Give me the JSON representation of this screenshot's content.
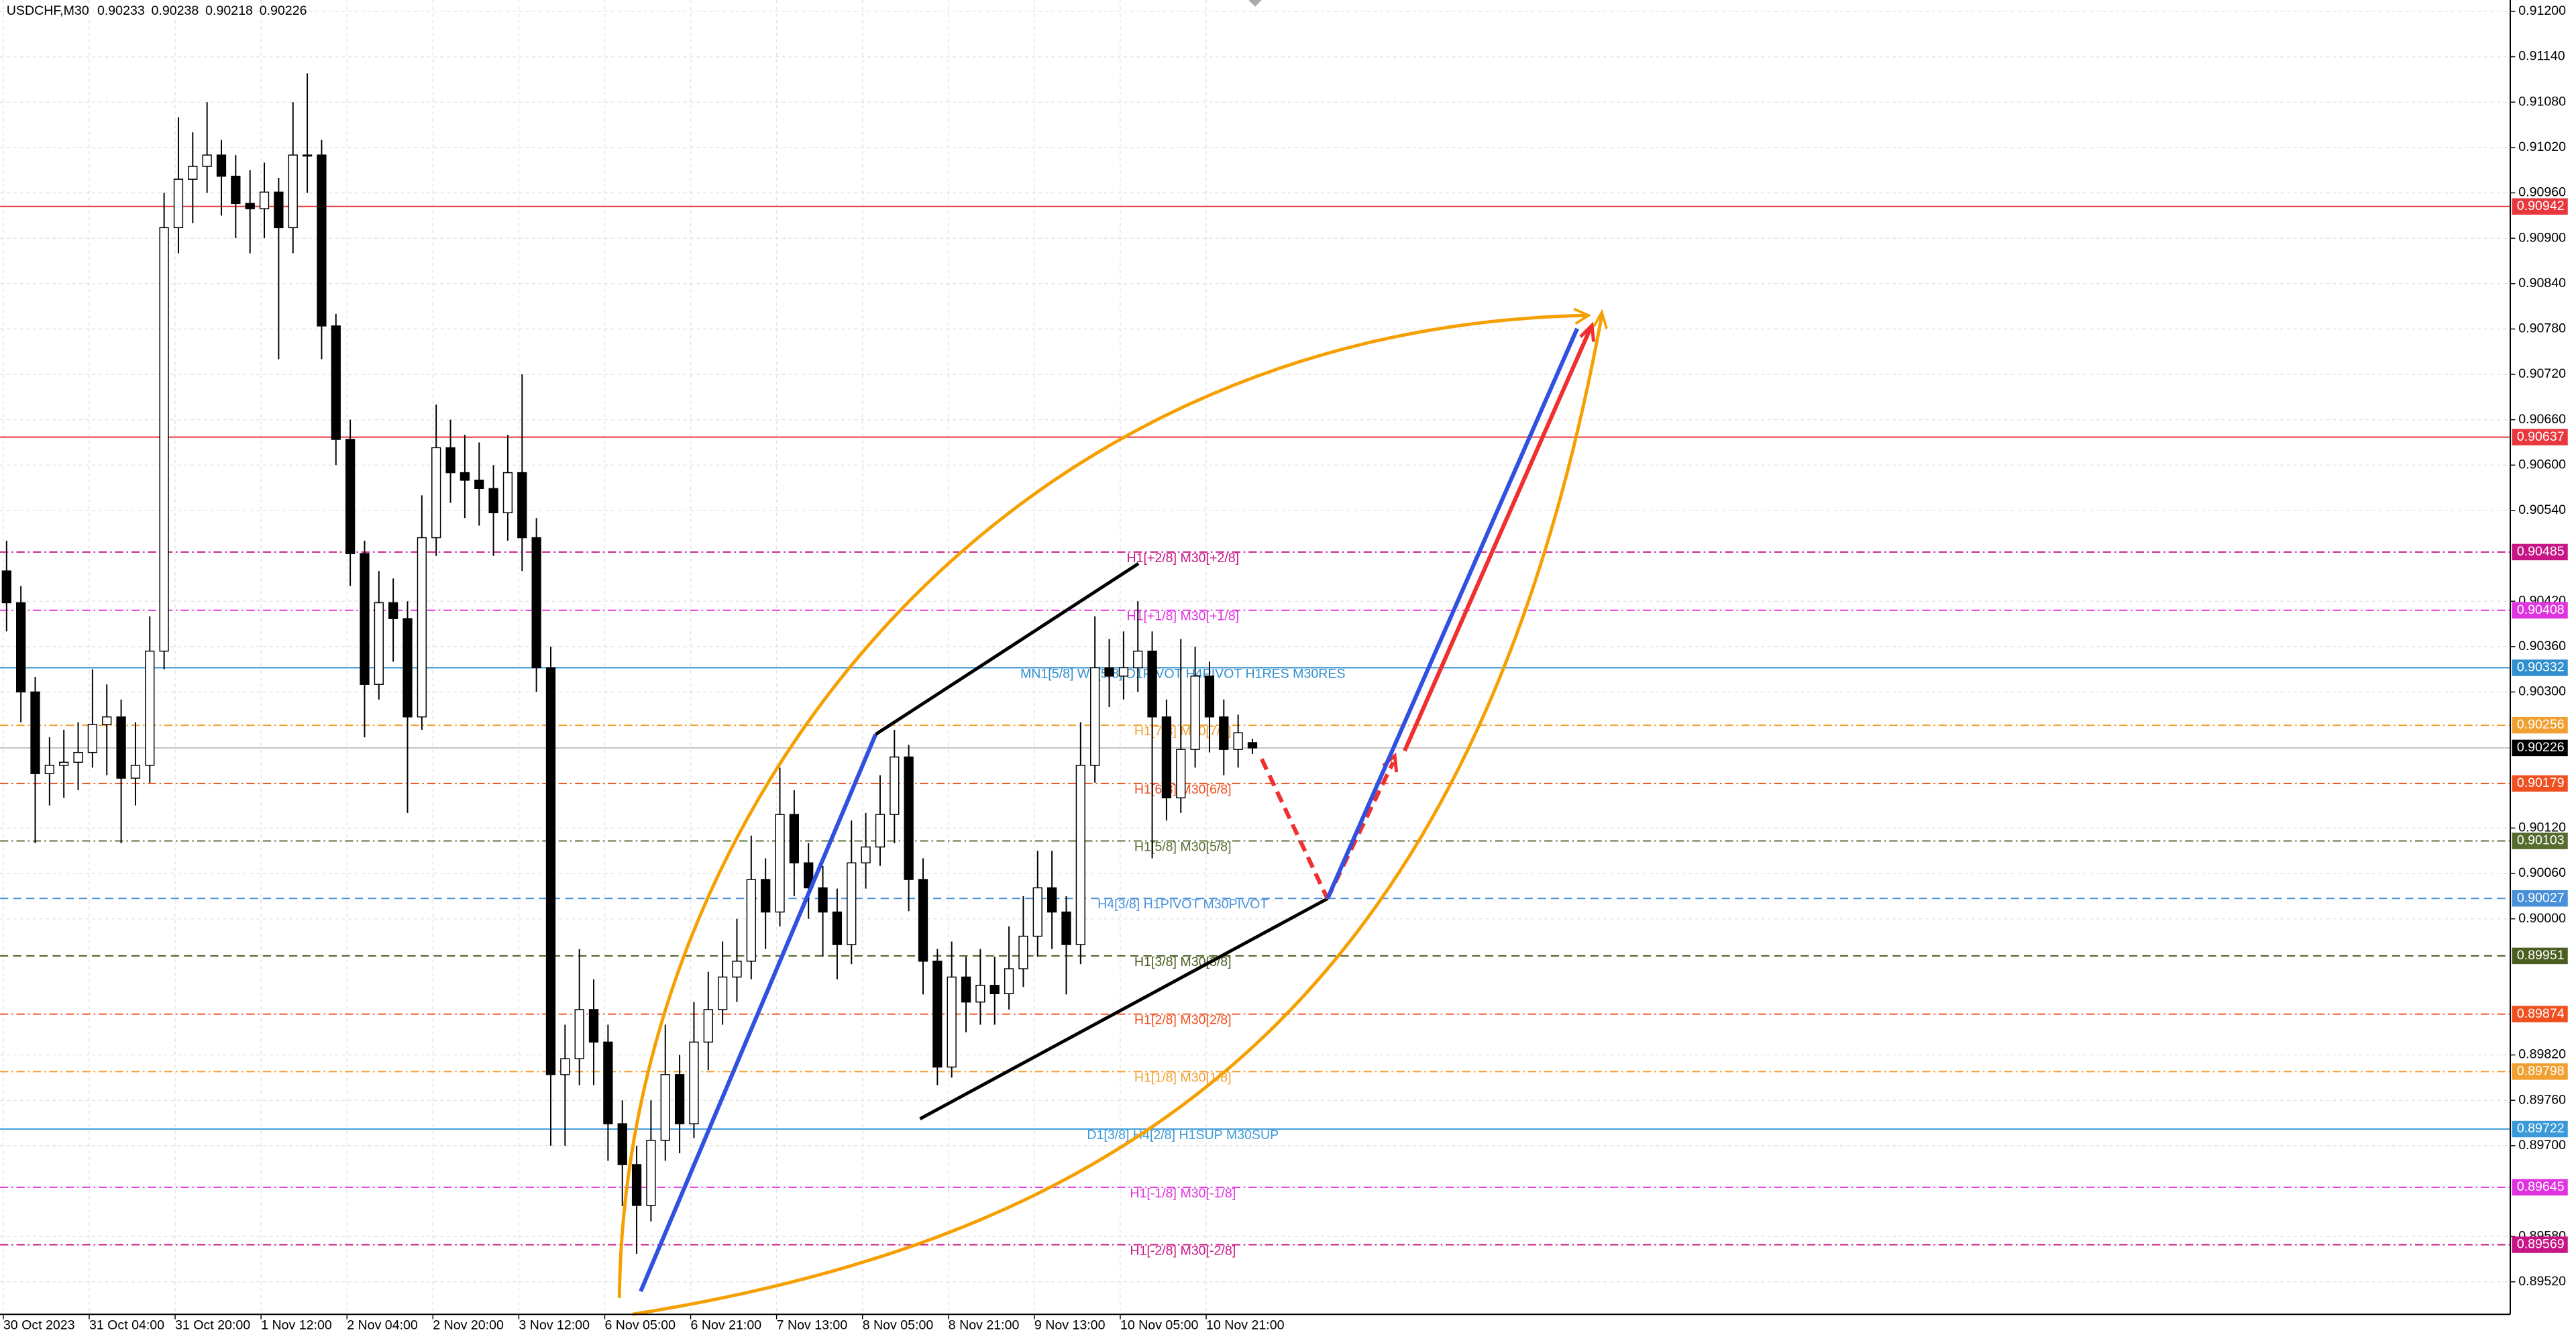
{
  "chart_data": {
    "type": "candlestick",
    "symbol": "USDCHF,M30",
    "ylim": [
      0.89477,
      0.91215
    ],
    "yticks": [
      {
        "value": 0.912,
        "label": "0.91200"
      },
      {
        "value": 0.9114,
        "label": "0.91140"
      },
      {
        "value": 0.9108,
        "label": "0.91080"
      },
      {
        "value": 0.9102,
        "label": "0.91020"
      },
      {
        "value": 0.9096,
        "label": "0.90960"
      },
      {
        "value": 0.909,
        "label": "0.90900"
      },
      {
        "value": 0.9084,
        "label": "0.90840"
      },
      {
        "value": 0.9078,
        "label": "0.90780"
      },
      {
        "value": 0.9072,
        "label": "0.90720"
      },
      {
        "value": 0.9066,
        "label": "0.90660"
      },
      {
        "value": 0.906,
        "label": "0.90600"
      },
      {
        "value": 0.9054,
        "label": "0.90540"
      },
      {
        "value": 0.9042,
        "label": "0.90420"
      },
      {
        "value": 0.9036,
        "label": "0.90360"
      },
      {
        "value": 0.903,
        "label": "0.90300"
      },
      {
        "value": 0.9012,
        "label": "0.90120"
      },
      {
        "value": 0.9006,
        "label": "0.90060"
      },
      {
        "value": 0.9,
        "label": "0.90000"
      },
      {
        "value": 0.8982,
        "label": "0.89820"
      },
      {
        "value": 0.8976,
        "label": "0.89760"
      },
      {
        "value": 0.897,
        "label": "0.89700"
      },
      {
        "value": 0.8958,
        "label": "0.89580"
      },
      {
        "value": 0.8952,
        "label": "0.89520"
      }
    ],
    "grid": true,
    "time_labels": [
      "30 Oct 2023",
      "31 Oct 04:00",
      "31 Oct 20:00",
      "1 Nov 12:00",
      "2 Nov 04:00",
      "2 Nov 20:00",
      "3 Nov 12:00",
      "6 Nov 05:00",
      "6 Nov 21:00",
      "7 Nov 13:00",
      "8 Nov 05:00",
      "8 Nov 21:00",
      "9 Nov 13:00",
      "10 Nov 05:00",
      "10 Nov 21:00"
    ],
    "open": [
      0.9046,
      0.90418,
      0.903,
      0.90192,
      0.90203,
      0.90207,
      0.9022,
      0.90257,
      0.90267,
      0.90186,
      0.90203,
      0.90354,
      0.90914,
      0.90978,
      0.90995,
      0.9101,
      0.90982,
      0.90946,
      0.90939,
      0.90961,
      0.90914,
      0.9101,
      0.9101,
      0.90784,
      0.90634,
      0.90483,
      0.9031,
      0.90418,
      0.90397,
      0.90267,
      0.90504,
      0.90623,
      0.9059,
      0.9058,
      0.90569,
      0.90537,
      0.9059,
      0.90504,
      0.90332,
      0.89794,
      0.89815,
      0.8988,
      0.89837,
      0.89729,
      0.89675,
      0.89621,
      0.89707,
      0.89794,
      0.89729,
      0.89837,
      0.8988,
      0.89923,
      0.89944,
      0.90052,
      0.90009,
      0.90138,
      0.90074,
      0.90041,
      0.90009,
      0.89966,
      0.90074,
      0.90095,
      0.90138,
      0.90214,
      0.90052,
      0.89944,
      0.89804,
      0.89923,
      0.8989,
      0.89912,
      0.89901,
      0.89934,
      0.89977,
      0.90041,
      0.90009,
      0.89966,
      0.90203,
      0.90332,
      0.90321,
      0.90332,
      0.90354,
      0.90267,
      0.9016,
      0.90224,
      0.90321,
      0.90267,
      0.90224,
      0.90233
    ],
    "high": [
      0.905,
      0.9044,
      0.9032,
      0.9024,
      0.9025,
      0.9026,
      0.9033,
      0.9031,
      0.9029,
      0.9026,
      0.904,
      0.9096,
      0.9106,
      0.9104,
      0.9108,
      0.9103,
      0.9101,
      0.9099,
      0.91,
      0.9098,
      0.9108,
      0.91118,
      0.9103,
      0.908,
      0.9066,
      0.905,
      0.9046,
      0.9045,
      0.9042,
      0.9056,
      0.9068,
      0.9066,
      0.9064,
      0.9063,
      0.906,
      0.9064,
      0.9072,
      0.9053,
      0.9036,
      0.8986,
      0.8996,
      0.8992,
      0.8986,
      0.8976,
      0.897,
      0.8976,
      0.8986,
      0.8982,
      0.8989,
      0.8993,
      0.8997,
      0.9,
      0.9011,
      0.9008,
      0.902,
      0.9017,
      0.901,
      0.9007,
      0.9004,
      0.9013,
      0.9014,
      0.9019,
      0.9025,
      0.9023,
      0.9008,
      0.8996,
      0.8997,
      0.8995,
      0.8996,
      0.8995,
      0.8999,
      0.9003,
      0.9009,
      0.9009,
      0.9003,
      0.9026,
      0.904,
      0.9037,
      0.9038,
      0.9042,
      0.9038,
      0.9029,
      0.9037,
      0.9036,
      0.9034,
      0.9029,
      0.9027,
      0.90238
    ],
    "low": [
      0.9038,
      0.9026,
      0.901,
      0.9015,
      0.9016,
      0.9017,
      0.902,
      0.9019,
      0.901,
      0.9015,
      0.9018,
      0.9033,
      0.9088,
      0.9092,
      0.9096,
      0.9093,
      0.909,
      0.9088,
      0.909,
      0.9074,
      0.9088,
      0.9096,
      0.9074,
      0.906,
      0.9044,
      0.9024,
      0.9029,
      0.9034,
      0.9014,
      0.9025,
      0.9048,
      0.9055,
      0.9053,
      0.9052,
      0.9048,
      0.905,
      0.9046,
      0.903,
      0.897,
      0.897,
      0.8978,
      0.8978,
      0.8968,
      0.8962,
      0.89557,
      0.896,
      0.8968,
      0.8969,
      0.8971,
      0.898,
      0.8986,
      0.8989,
      0.8992,
      0.8996,
      0.8999,
      0.9003,
      0.9,
      0.8995,
      0.8992,
      0.8994,
      0.9004,
      0.9007,
      0.901,
      0.9001,
      0.899,
      0.8978,
      0.8979,
      0.8985,
      0.8986,
      0.8986,
      0.8988,
      0.8991,
      0.8995,
      0.8996,
      0.899,
      0.8994,
      0.9018,
      0.9028,
      0.9029,
      0.903,
      0.9008,
      0.9013,
      0.9014,
      0.902,
      0.9022,
      0.9019,
      0.902,
      0.90218
    ],
    "close": [
      0.90418,
      0.903,
      0.90192,
      0.90203,
      0.90207,
      0.9022,
      0.90257,
      0.90267,
      0.90186,
      0.90203,
      0.90354,
      0.90914,
      0.90978,
      0.90995,
      0.9101,
      0.90982,
      0.90946,
      0.90939,
      0.90961,
      0.90914,
      0.9101,
      0.9101,
      0.90784,
      0.90634,
      0.90483,
      0.9031,
      0.90418,
      0.90397,
      0.90267,
      0.90504,
      0.90623,
      0.9059,
      0.9058,
      0.90569,
      0.90537,
      0.9059,
      0.90504,
      0.90332,
      0.89794,
      0.89815,
      0.8988,
      0.89837,
      0.89729,
      0.89675,
      0.89621,
      0.89707,
      0.89794,
      0.89729,
      0.89837,
      0.8988,
      0.89923,
      0.89944,
      0.90052,
      0.90009,
      0.90138,
      0.90074,
      0.90041,
      0.90009,
      0.89966,
      0.90074,
      0.90095,
      0.90138,
      0.90214,
      0.90052,
      0.89944,
      0.89804,
      0.89923,
      0.8989,
      0.89912,
      0.89901,
      0.89934,
      0.89977,
      0.90041,
      0.90009,
      0.89966,
      0.90203,
      0.90332,
      0.90321,
      0.90332,
      0.90354,
      0.90267,
      0.9016,
      0.90224,
      0.90321,
      0.90267,
      0.90224,
      0.90246,
      0.90226
    ],
    "bull_color": "#ffffff",
    "bear_color": "#000000",
    "wick_color": "#000000",
    "current_price_color": "#000000",
    "levels": [
      {
        "price": 0.90942,
        "color": "#e8383d",
        "style": "solid"
      },
      {
        "price": 0.90637,
        "color": "#e8383d",
        "style": "solid"
      },
      {
        "price": 0.90485,
        "label": "H1[+2/8] M30[+2/8]",
        "color": "#c71585",
        "style": "dashdot"
      },
      {
        "price": 0.90408,
        "label": "H1[+1/8] M30[+1/8]",
        "color": "#e033e0",
        "style": "dashdot"
      },
      {
        "price": 0.90332,
        "label": "MN1[5/8] W1[5/8] D1PIVOT H4PIVOT H1RES M30RES",
        "color": "#2f8fcf",
        "style": "solid"
      },
      {
        "price": 0.90256,
        "label": "H1[7/8] M30[7/8]",
        "color": "#f0a030",
        "style": "dashdot"
      },
      {
        "price": 0.90179,
        "label": "H1[6/8] M30[6/8]",
        "color": "#f05020",
        "style": "dashdot"
      },
      {
        "price": 0.90103,
        "label": "H1[5/8] M30[5/8]",
        "color": "#556b2f",
        "style": "dashdot"
      },
      {
        "price": 0.90027,
        "label": "H4[3/8] H1PIVOT M30PIVOT",
        "color": "#4a90d9",
        "style": "dashed"
      },
      {
        "price": 0.89951,
        "label": "H1[3/8] M30[3/8]",
        "color": "#4b5e20",
        "style": "dashed"
      },
      {
        "price": 0.89874,
        "label": "H1[2/8] M30[2/8]",
        "color": "#f05020",
        "style": "dashdot"
      },
      {
        "price": 0.89798,
        "label": "H1[1/8] M30[1/8]",
        "color": "#f0a030",
        "style": "dashdot"
      },
      {
        "price": 0.89722,
        "label": "D1[3/8] H4[2/8] H1SUP M30SUP",
        "color": "#3a9ad9",
        "style": "solid"
      },
      {
        "price": 0.89645,
        "label": "H1[-1/8] M30[-1/8]",
        "color": "#e033e0",
        "style": "dashdot"
      },
      {
        "price": 0.89569,
        "label": "H1[-2/8] M30[-2/8]",
        "color": "#c71585",
        "style": "dashdot"
      }
    ]
  }
}
